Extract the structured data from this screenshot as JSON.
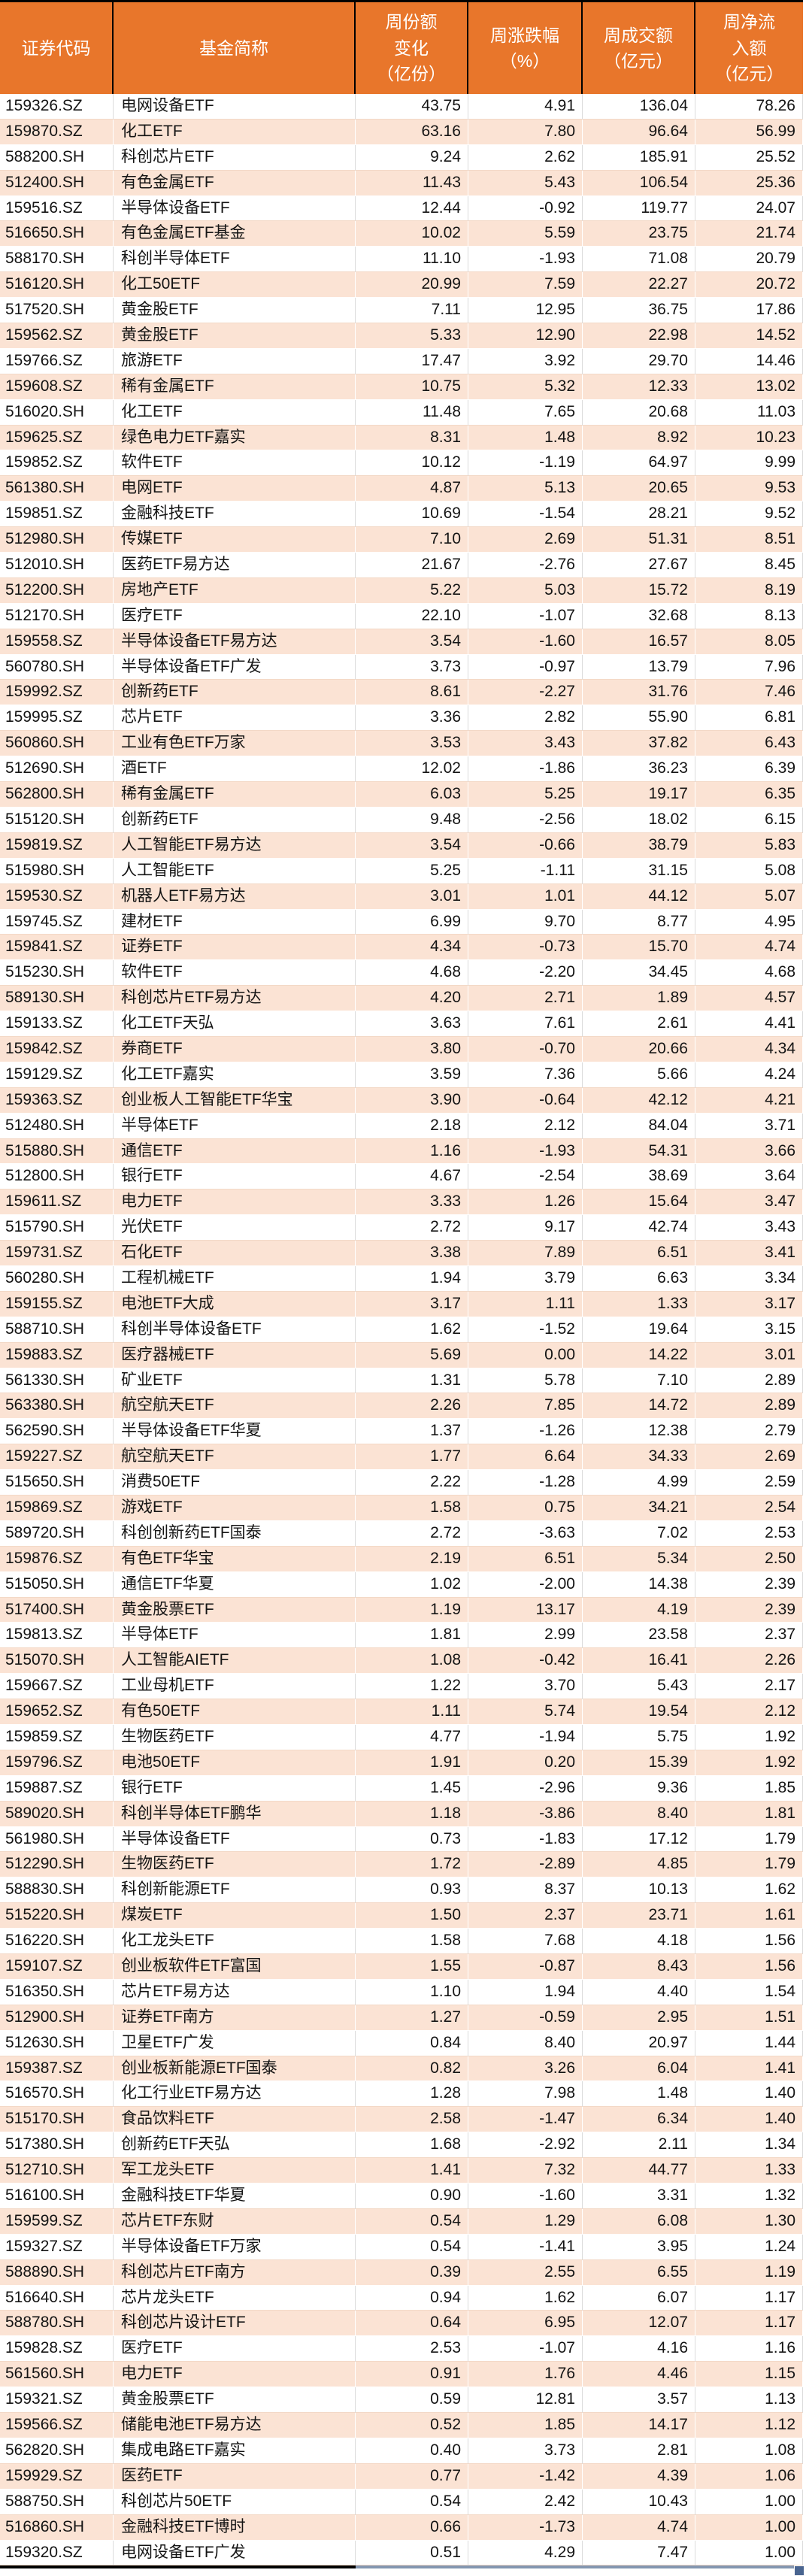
{
  "table": {
    "columns": [
      {
        "key": "code",
        "label": "证券代码"
      },
      {
        "key": "name",
        "label": "基金简称"
      },
      {
        "key": "share_change",
        "label": "周份额\n变化\n（亿份）"
      },
      {
        "key": "pct_change",
        "label": "周涨跌幅\n（%）"
      },
      {
        "key": "turnover",
        "label": "周成交额\n（亿元）"
      },
      {
        "key": "net_inflow",
        "label": "周净流\n入额\n（亿元）"
      }
    ],
    "rows": [
      [
        "159326.SZ",
        "电网设备ETF",
        "43.75",
        "4.91",
        "136.04",
        "78.26"
      ],
      [
        "159870.SZ",
        "化工ETF",
        "63.16",
        "7.80",
        "96.64",
        "56.99"
      ],
      [
        "588200.SH",
        "科创芯片ETF",
        "9.24",
        "2.62",
        "185.91",
        "25.52"
      ],
      [
        "512400.SH",
        "有色金属ETF",
        "11.43",
        "5.43",
        "106.54",
        "25.36"
      ],
      [
        "159516.SZ",
        "半导体设备ETF",
        "12.44",
        "-0.92",
        "119.77",
        "24.07"
      ],
      [
        "516650.SH",
        "有色金属ETF基金",
        "10.02",
        "5.59",
        "23.75",
        "21.74"
      ],
      [
        "588170.SH",
        "科创半导体ETF",
        "11.10",
        "-1.93",
        "71.08",
        "20.79"
      ],
      [
        "516120.SH",
        "化工50ETF",
        "20.99",
        "7.59",
        "22.27",
        "20.72"
      ],
      [
        "517520.SH",
        "黄金股ETF",
        "7.11",
        "12.95",
        "36.75",
        "17.86"
      ],
      [
        "159562.SZ",
        "黄金股ETF",
        "5.33",
        "12.90",
        "22.98",
        "14.52"
      ],
      [
        "159766.SZ",
        "旅游ETF",
        "17.47",
        "3.92",
        "29.70",
        "14.46"
      ],
      [
        "159608.SZ",
        "稀有金属ETF",
        "10.75",
        "5.32",
        "12.33",
        "13.02"
      ],
      [
        "516020.SH",
        "化工ETF",
        "11.48",
        "7.65",
        "20.68",
        "11.03"
      ],
      [
        "159625.SZ",
        "绿色电力ETF嘉实",
        "8.31",
        "1.48",
        "8.92",
        "10.23"
      ],
      [
        "159852.SZ",
        "软件ETF",
        "10.12",
        "-1.19",
        "64.97",
        "9.99"
      ],
      [
        "561380.SH",
        "电网ETF",
        "4.87",
        "5.13",
        "20.65",
        "9.53"
      ],
      [
        "159851.SZ",
        "金融科技ETF",
        "10.69",
        "-1.54",
        "28.21",
        "9.52"
      ],
      [
        "512980.SH",
        "传媒ETF",
        "7.10",
        "2.69",
        "51.31",
        "8.51"
      ],
      [
        "512010.SH",
        "医药ETF易方达",
        "21.67",
        "-2.76",
        "27.67",
        "8.45"
      ],
      [
        "512200.SH",
        "房地产ETF",
        "5.22",
        "5.03",
        "15.72",
        "8.19"
      ],
      [
        "512170.SH",
        "医疗ETF",
        "22.10",
        "-1.07",
        "32.68",
        "8.13"
      ],
      [
        "159558.SZ",
        "半导体设备ETF易方达",
        "3.54",
        "-1.60",
        "16.57",
        "8.05"
      ],
      [
        "560780.SH",
        "半导体设备ETF广发",
        "3.73",
        "-0.97",
        "13.79",
        "7.96"
      ],
      [
        "159992.SZ",
        "创新药ETF",
        "8.61",
        "-2.27",
        "31.76",
        "7.46"
      ],
      [
        "159995.SZ",
        "芯片ETF",
        "3.36",
        "2.82",
        "55.90",
        "6.81"
      ],
      [
        "560860.SH",
        "工业有色ETF万家",
        "3.53",
        "3.43",
        "37.82",
        "6.43"
      ],
      [
        "512690.SH",
        "酒ETF",
        "12.02",
        "-1.86",
        "36.23",
        "6.39"
      ],
      [
        "562800.SH",
        "稀有金属ETF",
        "6.03",
        "5.25",
        "19.17",
        "6.35"
      ],
      [
        "515120.SH",
        "创新药ETF",
        "9.48",
        "-2.56",
        "18.02",
        "6.15"
      ],
      [
        "159819.SZ",
        "人工智能ETF易方达",
        "3.54",
        "-0.66",
        "38.79",
        "5.83"
      ],
      [
        "515980.SH",
        "人工智能ETF",
        "5.25",
        "-1.11",
        "31.15",
        "5.08"
      ],
      [
        "159530.SZ",
        "机器人ETF易方达",
        "3.01",
        "1.01",
        "44.12",
        "5.07"
      ],
      [
        "159745.SZ",
        "建材ETF",
        "6.99",
        "9.70",
        "8.77",
        "4.95"
      ],
      [
        "159841.SZ",
        "证券ETF",
        "4.34",
        "-0.73",
        "15.70",
        "4.74"
      ],
      [
        "515230.SH",
        "软件ETF",
        "4.68",
        "-2.20",
        "34.45",
        "4.68"
      ],
      [
        "589130.SH",
        "科创芯片ETF易方达",
        "4.20",
        "2.71",
        "1.89",
        "4.57"
      ],
      [
        "159133.SZ",
        "化工ETF天弘",
        "3.63",
        "7.61",
        "2.61",
        "4.41"
      ],
      [
        "159842.SZ",
        "券商ETF",
        "3.80",
        "-0.70",
        "20.66",
        "4.34"
      ],
      [
        "159129.SZ",
        "化工ETF嘉实",
        "3.59",
        "7.36",
        "5.66",
        "4.24"
      ],
      [
        "159363.SZ",
        "创业板人工智能ETF华宝",
        "3.90",
        "-0.64",
        "42.12",
        "4.21"
      ],
      [
        "512480.SH",
        "半导体ETF",
        "2.18",
        "2.12",
        "84.04",
        "3.71"
      ],
      [
        "515880.SH",
        "通信ETF",
        "1.16",
        "-1.93",
        "54.31",
        "3.66"
      ],
      [
        "512800.SH",
        "银行ETF",
        "4.67",
        "-2.54",
        "38.69",
        "3.64"
      ],
      [
        "159611.SZ",
        "电力ETF",
        "3.33",
        "1.26",
        "15.64",
        "3.47"
      ],
      [
        "515790.SH",
        "光伏ETF",
        "2.72",
        "9.17",
        "42.74",
        "3.43"
      ],
      [
        "159731.SZ",
        "石化ETF",
        "3.38",
        "7.89",
        "6.51",
        "3.41"
      ],
      [
        "560280.SH",
        "工程机械ETF",
        "1.94",
        "3.79",
        "6.63",
        "3.34"
      ],
      [
        "159155.SZ",
        "电池ETF大成",
        "3.17",
        "1.11",
        "1.33",
        "3.17"
      ],
      [
        "588710.SH",
        "科创半导体设备ETF",
        "1.62",
        "-1.52",
        "19.64",
        "3.15"
      ],
      [
        "159883.SZ",
        "医疗器械ETF",
        "5.69",
        "0.00",
        "14.22",
        "3.01"
      ],
      [
        "561330.SH",
        "矿业ETF",
        "1.31",
        "5.78",
        "7.10",
        "2.89"
      ],
      [
        "563380.SH",
        "航空航天ETF",
        "2.26",
        "7.85",
        "14.72",
        "2.89"
      ],
      [
        "562590.SH",
        "半导体设备ETF华夏",
        "1.37",
        "-1.26",
        "12.38",
        "2.79"
      ],
      [
        "159227.SZ",
        "航空航天ETF",
        "1.77",
        "6.64",
        "34.33",
        "2.69"
      ],
      [
        "515650.SH",
        "消费50ETF",
        "2.22",
        "-1.28",
        "4.99",
        "2.59"
      ],
      [
        "159869.SZ",
        "游戏ETF",
        "1.58",
        "0.75",
        "34.21",
        "2.54"
      ],
      [
        "589720.SH",
        "科创创新药ETF国泰",
        "2.72",
        "-3.63",
        "7.02",
        "2.53"
      ],
      [
        "159876.SZ",
        "有色ETF华宝",
        "2.19",
        "6.51",
        "5.34",
        "2.50"
      ],
      [
        "515050.SH",
        "通信ETF华夏",
        "1.02",
        "-2.00",
        "14.38",
        "2.39"
      ],
      [
        "517400.SH",
        "黄金股票ETF",
        "1.19",
        "13.17",
        "4.19",
        "2.39"
      ],
      [
        "159813.SZ",
        "半导体ETF",
        "1.81",
        "2.99",
        "23.58",
        "2.37"
      ],
      [
        "515070.SH",
        "人工智能AIETF",
        "1.08",
        "-0.42",
        "16.41",
        "2.26"
      ],
      [
        "159667.SZ",
        "工业母机ETF",
        "1.22",
        "3.70",
        "5.43",
        "2.17"
      ],
      [
        "159652.SZ",
        "有色50ETF",
        "1.11",
        "5.74",
        "19.54",
        "2.12"
      ],
      [
        "159859.SZ",
        "生物医药ETF",
        "4.77",
        "-1.94",
        "5.75",
        "1.92"
      ],
      [
        "159796.SZ",
        "电池50ETF",
        "1.91",
        "0.20",
        "15.39",
        "1.92"
      ],
      [
        "159887.SZ",
        "银行ETF",
        "1.45",
        "-2.96",
        "9.36",
        "1.85"
      ],
      [
        "589020.SH",
        "科创半导体ETF鹏华",
        "1.18",
        "-3.86",
        "8.40",
        "1.81"
      ],
      [
        "561980.SH",
        "半导体设备ETF",
        "0.73",
        "-1.83",
        "17.12",
        "1.79"
      ],
      [
        "512290.SH",
        "生物医药ETF",
        "1.72",
        "-2.89",
        "4.85",
        "1.79"
      ],
      [
        "588830.SH",
        "科创新能源ETF",
        "0.93",
        "8.37",
        "10.13",
        "1.62"
      ],
      [
        "515220.SH",
        "煤炭ETF",
        "1.50",
        "2.37",
        "23.71",
        "1.61"
      ],
      [
        "516220.SH",
        "化工龙头ETF",
        "1.58",
        "7.68",
        "4.18",
        "1.56"
      ],
      [
        "159107.SZ",
        "创业板软件ETF富国",
        "1.55",
        "-0.87",
        "8.43",
        "1.56"
      ],
      [
        "516350.SH",
        "芯片ETF易方达",
        "1.10",
        "1.94",
        "4.40",
        "1.54"
      ],
      [
        "512900.SH",
        "证券ETF南方",
        "1.27",
        "-0.59",
        "2.95",
        "1.51"
      ],
      [
        "512630.SH",
        "卫星ETF广发",
        "0.84",
        "8.40",
        "20.97",
        "1.44"
      ],
      [
        "159387.SZ",
        "创业板新能源ETF国泰",
        "0.82",
        "3.26",
        "6.04",
        "1.41"
      ],
      [
        "516570.SH",
        "化工行业ETF易方达",
        "1.28",
        "7.98",
        "1.48",
        "1.40"
      ],
      [
        "515170.SH",
        "食品饮料ETF",
        "2.58",
        "-1.47",
        "6.34",
        "1.40"
      ],
      [
        "517380.SH",
        "创新药ETF天弘",
        "1.68",
        "-2.92",
        "2.11",
        "1.34"
      ],
      [
        "512710.SH",
        "军工龙头ETF",
        "1.41",
        "7.32",
        "44.77",
        "1.33"
      ],
      [
        "516100.SH",
        "金融科技ETF华夏",
        "0.90",
        "-1.60",
        "3.31",
        "1.32"
      ],
      [
        "159599.SZ",
        "芯片ETF东财",
        "0.54",
        "1.29",
        "6.08",
        "1.30"
      ],
      [
        "159327.SZ",
        "半导体设备ETF万家",
        "0.54",
        "-1.41",
        "3.95",
        "1.24"
      ],
      [
        "588890.SH",
        "科创芯片ETF南方",
        "0.39",
        "2.55",
        "6.55",
        "1.19"
      ],
      [
        "516640.SH",
        "芯片龙头ETF",
        "0.94",
        "1.62",
        "6.07",
        "1.17"
      ],
      [
        "588780.SH",
        "科创芯片设计ETF",
        "0.64",
        "6.95",
        "12.07",
        "1.17"
      ],
      [
        "159828.SZ",
        "医疗ETF",
        "2.53",
        "-1.07",
        "4.16",
        "1.16"
      ],
      [
        "561560.SH",
        "电力ETF",
        "0.91",
        "1.76",
        "4.46",
        "1.15"
      ],
      [
        "159321.SZ",
        "黄金股票ETF",
        "0.59",
        "12.81",
        "3.57",
        "1.13"
      ],
      [
        "159566.SZ",
        "储能电池ETF易方达",
        "0.52",
        "1.85",
        "14.17",
        "1.12"
      ],
      [
        "562820.SH",
        "集成电路ETF嘉实",
        "0.40",
        "3.73",
        "2.81",
        "1.08"
      ],
      [
        "159929.SZ",
        "医药ETF",
        "0.77",
        "-1.42",
        "4.39",
        "1.06"
      ],
      [
        "588750.SH",
        "科创芯片50ETF",
        "0.54",
        "2.42",
        "10.43",
        "1.00"
      ],
      [
        "516860.SH",
        "金融科技ETF博时",
        "0.66",
        "-1.73",
        "4.74",
        "1.00"
      ],
      [
        "159320.SZ",
        "电网设备ETF广发",
        "0.51",
        "4.29",
        "7.47",
        "1.00"
      ]
    ]
  },
  "colors": {
    "header_bg": "#e8762b",
    "header_text": "#ffffff",
    "stripe_bg": "#fbe3d4",
    "row_bg": "#ffffff",
    "text": "#141414",
    "top_border": "#000000",
    "bottom_border_left": "#000000",
    "bottom_border_right": "#8497b0",
    "selection_handle": "#4a6590"
  }
}
